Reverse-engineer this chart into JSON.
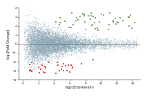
{
  "title": "",
  "xlabel": "log₁₀(Expression)",
  "ylabel": "log₂(Fold Change)",
  "xlim": [
    -0.5,
    15
  ],
  "ylim": [
    -4,
    4
  ],
  "xticks": [
    0,
    2,
    4,
    6,
    8,
    10,
    12,
    14
  ],
  "yticks": [
    -4,
    -3,
    -2,
    -1,
    0,
    1,
    2,
    3,
    4
  ],
  "bg_color": "#ffffff",
  "seed": 99,
  "gray_color": "#8eaab8",
  "green_color": "#5a8c3c",
  "red_color": "#cc2222",
  "point_size": 1.0,
  "point_alpha": 0.55
}
